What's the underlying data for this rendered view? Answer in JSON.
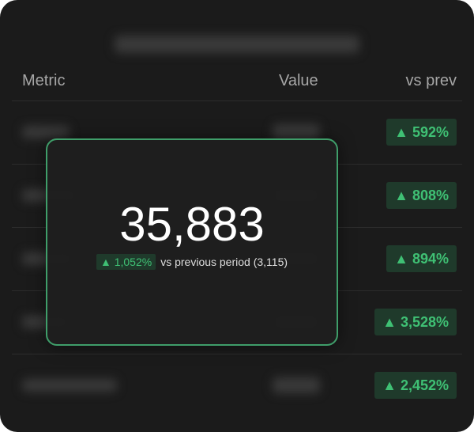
{
  "table": {
    "headers": [
      "Metric",
      "Value",
      "vs prev"
    ],
    "changes": [
      "▲ 592%",
      "▲ 808%",
      "▲ 894%",
      "▲ 3,528%",
      "▲ 2,452%"
    ]
  },
  "popup": {
    "value": "35,883",
    "change": "▲ 1,052%",
    "comparison": "vs previous period (3,115)"
  }
}
